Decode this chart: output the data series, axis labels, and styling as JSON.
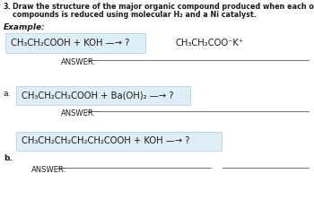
{
  "title_num": "3.",
  "title_line1": "Draw the structure of the major organic compound produced when each of the following",
  "title_line2": "compounds is reduced using molecular H₂ and a Ni catalyst.",
  "example_label": "Example:",
  "example_reactant": "CH₃CH₂COOH + KOH —→ ?",
  "example_answer_compound": "CH₃CH₂COO⁻K⁺",
  "example_answer_label": "ANSWER:",
  "part_a_label": "a.",
  "part_a_reactant": "CH₃CH₂CH₂COOH + Ba(OH)₂ —→ ?",
  "part_a_answer_label": "ANSWER:",
  "part_b_reactant": "CH₃CH₂CH₂CH₂CH₂COOH + KOH —→ ?",
  "part_b_label": "b.",
  "part_b_answer_label": "ANSWER:",
  "bg_color": "#ffffff",
  "text_color": "#1a1a1a",
  "box_color": "#ddeef6",
  "box_edge_color": "#b0cce0",
  "title_fontsize": 5.8,
  "label_fontsize": 6.5,
  "answer_fontsize": 6.0,
  "chem_fontsize": 7.2
}
